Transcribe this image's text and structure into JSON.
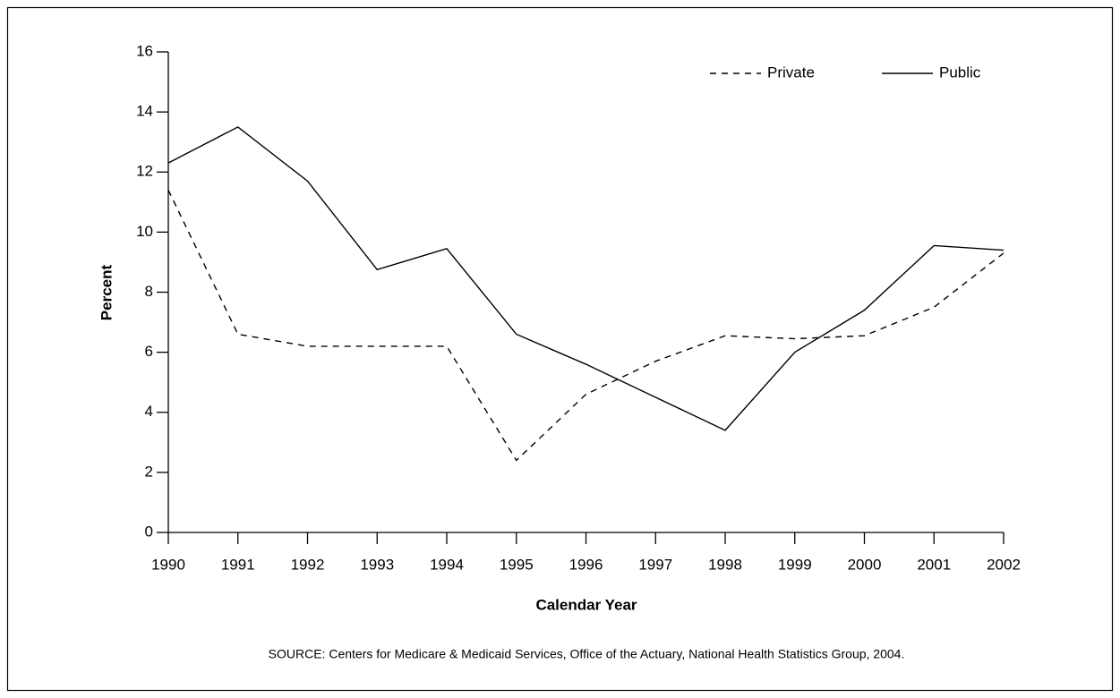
{
  "chart_data": {
    "type": "line",
    "x": [
      1990,
      1991,
      1992,
      1993,
      1994,
      1995,
      1996,
      1997,
      1998,
      1999,
      2000,
      2001,
      2002
    ],
    "series": [
      {
        "name": "Private",
        "color": "#000000",
        "dash": true,
        "values": [
          11.4,
          6.6,
          6.2,
          6.2,
          6.2,
          2.4,
          4.6,
          5.7,
          6.55,
          6.45,
          6.55,
          7.5,
          9.3
        ]
      },
      {
        "name": "Public",
        "color": "#000000",
        "dash": false,
        "values": [
          12.3,
          13.5,
          11.7,
          8.75,
          9.45,
          6.6,
          5.6,
          4.5,
          3.4,
          6.0,
          7.4,
          9.55,
          9.4
        ]
      }
    ],
    "xlim": [
      1990,
      2002
    ],
    "xticks": [
      1990,
      1991,
      1992,
      1993,
      1994,
      1995,
      1996,
      1997,
      1998,
      1999,
      2000,
      2001,
      2002
    ],
    "ylim": [
      0,
      16
    ],
    "yticks": [
      0,
      2,
      4,
      6,
      8,
      10,
      12,
      14,
      16
    ],
    "ylabel": "Percent",
    "xlabel": "Calendar Year",
    "source": "SOURCE: Centers for Medicare & Medicaid Services, Office of the Actuary, National Health Statistics Group, 2004.",
    "legend": "upper right",
    "grid": false
  }
}
